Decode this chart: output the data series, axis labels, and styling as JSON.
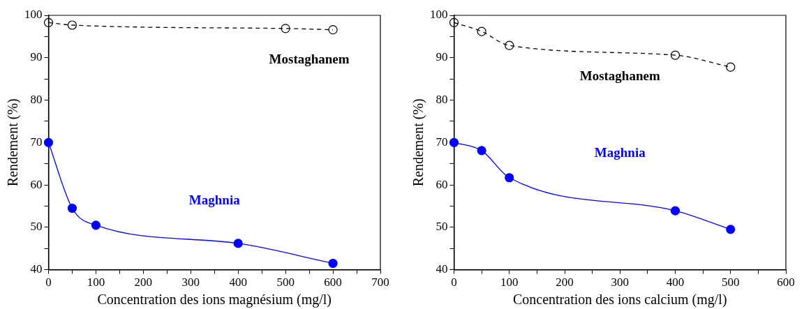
{
  "chart_data": [
    {
      "type": "line",
      "xlabel": "Concentration des ions magnésium (mg/l)",
      "ylabel": "Rendement (%)",
      "xlim": [
        0,
        700
      ],
      "ylim": [
        40,
        100
      ],
      "xticks": [
        0,
        {
          "value": 50,
          "label": null
        },
        100,
        {
          "value": 150,
          "label": null
        },
        200,
        {
          "value": 250,
          "label": null
        },
        300,
        {
          "value": 350,
          "label": null
        },
        400,
        {
          "value": 450,
          "label": null
        },
        500,
        {
          "value": 550,
          "label": null
        },
        600,
        {
          "value": 650,
          "label": null
        },
        700
      ],
      "yticks": [
        40,
        {
          "value": 45,
          "label": null
        },
        50,
        {
          "value": 55,
          "label": null
        },
        60,
        {
          "value": 65,
          "label": null
        },
        70,
        {
          "value": 75,
          "label": null
        },
        80,
        {
          "value": 85,
          "label": null
        },
        90,
        {
          "value": 95,
          "label": null
        },
        100
      ],
      "grid": false,
      "legend": false,
      "marker": "circle",
      "series": [
        {
          "name": "Mostaghanem",
          "color": "#000000",
          "line_style": "dashed",
          "x": [
            0,
            50,
            500,
            600
          ],
          "values": [
            98.3,
            97.7,
            96.9,
            96.6
          ]
        },
        {
          "name": "Maghnia",
          "color": "#0000ff",
          "line_style": "solid",
          "x": [
            0,
            50,
            100,
            400,
            600
          ],
          "values": [
            70,
            54.5,
            50.5,
            46.2,
            41.5
          ]
        }
      ]
    },
    {
      "type": "line",
      "xlabel": "Concentration des ions calcium (mg/l)",
      "ylabel": "Rendement (%)",
      "xlim": [
        0,
        600
      ],
      "ylim": [
        40,
        100
      ],
      "xticks": [
        0,
        {
          "value": 50,
          "label": null
        },
        100,
        {
          "value": 150,
          "label": null
        },
        200,
        {
          "value": 250,
          "label": null
        },
        300,
        {
          "value": 350,
          "label": null
        },
        400,
        {
          "value": 450,
          "label": null
        },
        500,
        {
          "value": 550,
          "label": null
        },
        600
      ],
      "yticks": [
        40,
        {
          "value": 45,
          "label": null
        },
        50,
        {
          "value": 55,
          "label": null
        },
        60,
        {
          "value": 65,
          "label": null
        },
        70,
        {
          "value": 75,
          "label": null
        },
        80,
        {
          "value": 85,
          "label": null
        },
        90,
        {
          "value": 95,
          "label": null
        },
        100
      ],
      "grid": false,
      "legend": false,
      "marker": "circle",
      "series": [
        {
          "name": "Mostaghanem",
          "color": "#000000",
          "line_style": "dashed",
          "x": [
            0,
            50,
            100,
            400,
            500
          ],
          "values": [
            98.3,
            96.2,
            92.9,
            90.6,
            87.8
          ]
        },
        {
          "name": "Maghnia",
          "color": "#0000ff",
          "line_style": "solid",
          "x": [
            0,
            50,
            100,
            400,
            500
          ],
          "values": [
            70,
            68.1,
            61.7,
            53.9,
            49.5
          ]
        }
      ]
    }
  ]
}
